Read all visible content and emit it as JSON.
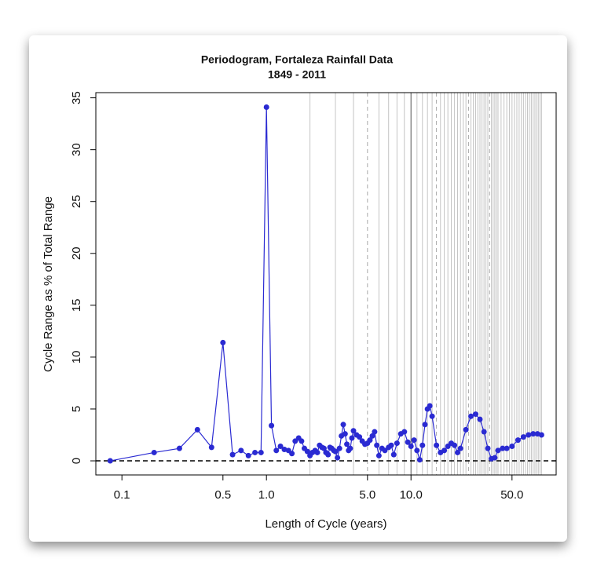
{
  "chart_data": {
    "type": "scatter-line",
    "title": "Periodogram, Fortaleza Rainfall Data",
    "subtitle": "1849 - 2011",
    "xlabel": "Length of Cycle (years)",
    "ylabel": "Cycle Range as % of Total Range",
    "xlog": true,
    "xlim": [
      0.066,
      101
    ],
    "ylim": [
      -1.36,
      35.5
    ],
    "xticks": [
      0.1,
      0.5,
      {
        "value": 1,
        "label": "1.0"
      },
      {
        "value": 5,
        "label": "5.0"
      },
      {
        "value": 10,
        "label": "10.0"
      },
      {
        "value": 50,
        "label": "50.0"
      }
    ],
    "yticks": [
      0,
      5,
      10,
      15,
      20,
      25,
      30,
      35
    ],
    "hline": 0,
    "vlines": [
      2,
      3,
      4,
      6,
      7,
      8,
      9,
      11,
      12,
      13,
      14,
      16,
      17,
      18,
      19,
      20,
      21,
      22,
      23,
      24,
      26,
      27,
      28,
      29,
      30,
      31,
      32,
      33,
      34,
      36,
      37,
      38,
      39,
      40,
      42,
      44,
      46,
      48,
      50,
      52,
      54,
      56,
      58,
      60,
      62,
      64,
      66,
      68,
      70,
      72,
      74,
      76,
      78,
      80
    ],
    "dashed_vlines": [
      5,
      15,
      25,
      35
    ],
    "dark_vlines": [
      10
    ],
    "series": [
      {
        "color": "#2a2ad2",
        "x": [
          0.083,
          0.167,
          0.25,
          0.333,
          0.417,
          0.5,
          0.583,
          0.667,
          0.75,
          0.833,
          0.917,
          1.0,
          1.083,
          1.17,
          1.25,
          1.33,
          1.42,
          1.5,
          1.58,
          1.67,
          1.75,
          1.83,
          1.92,
          2.0,
          2.08,
          2.17,
          2.25,
          2.33,
          2.42,
          2.5,
          2.58,
          2.67,
          2.75,
          2.83,
          2.92,
          3.0,
          3.1,
          3.2,
          3.3,
          3.4,
          3.5,
          3.6,
          3.7,
          3.8,
          3.9,
          4.0,
          4.2,
          4.4,
          4.6,
          4.8,
          5.0,
          5.2,
          5.4,
          5.6,
          5.8,
          6.0,
          6.3,
          6.6,
          7.0,
          7.3,
          7.6,
          8.0,
          8.5,
          9.0,
          9.5,
          10,
          10.5,
          11,
          11.5,
          12,
          12.5,
          13,
          13.5,
          14,
          15,
          16,
          17,
          18,
          19,
          20,
          21,
          22,
          24,
          26,
          28,
          30,
          32,
          34,
          36,
          38,
          40,
          43,
          46,
          50,
          55,
          60,
          65,
          70,
          75,
          80
        ],
        "values": [
          0.0,
          0.8,
          1.2,
          3.0,
          1.3,
          11.4,
          0.6,
          1.0,
          0.5,
          0.8,
          0.8,
          34.1,
          3.4,
          1.0,
          1.4,
          1.1,
          1.0,
          0.7,
          1.9,
          2.2,
          1.9,
          1.2,
          0.9,
          0.5,
          0.8,
          1.0,
          0.8,
          1.5,
          1.3,
          1.2,
          0.8,
          0.6,
          1.3,
          1.2,
          1.0,
          0.9,
          0.3,
          1.2,
          2.4,
          3.5,
          2.6,
          1.6,
          1.0,
          1.2,
          2.2,
          2.9,
          2.5,
          2.3,
          1.9,
          1.6,
          1.7,
          2.0,
          2.4,
          2.8,
          1.5,
          0.5,
          1.2,
          1.0,
          1.3,
          1.5,
          0.6,
          1.7,
          2.6,
          2.8,
          1.8,
          1.4,
          2.0,
          1.0,
          0.1,
          1.5,
          3.5,
          5.0,
          5.3,
          4.3,
          1.5,
          0.8,
          1.0,
          1.4,
          1.7,
          1.5,
          0.8,
          1.2,
          3.0,
          4.3,
          4.5,
          4.0,
          2.8,
          1.2,
          0.2,
          0.3,
          1.0,
          1.2,
          1.2,
          1.4,
          2.0,
          2.3,
          2.5,
          2.6,
          2.6,
          2.5
        ]
      }
    ]
  }
}
